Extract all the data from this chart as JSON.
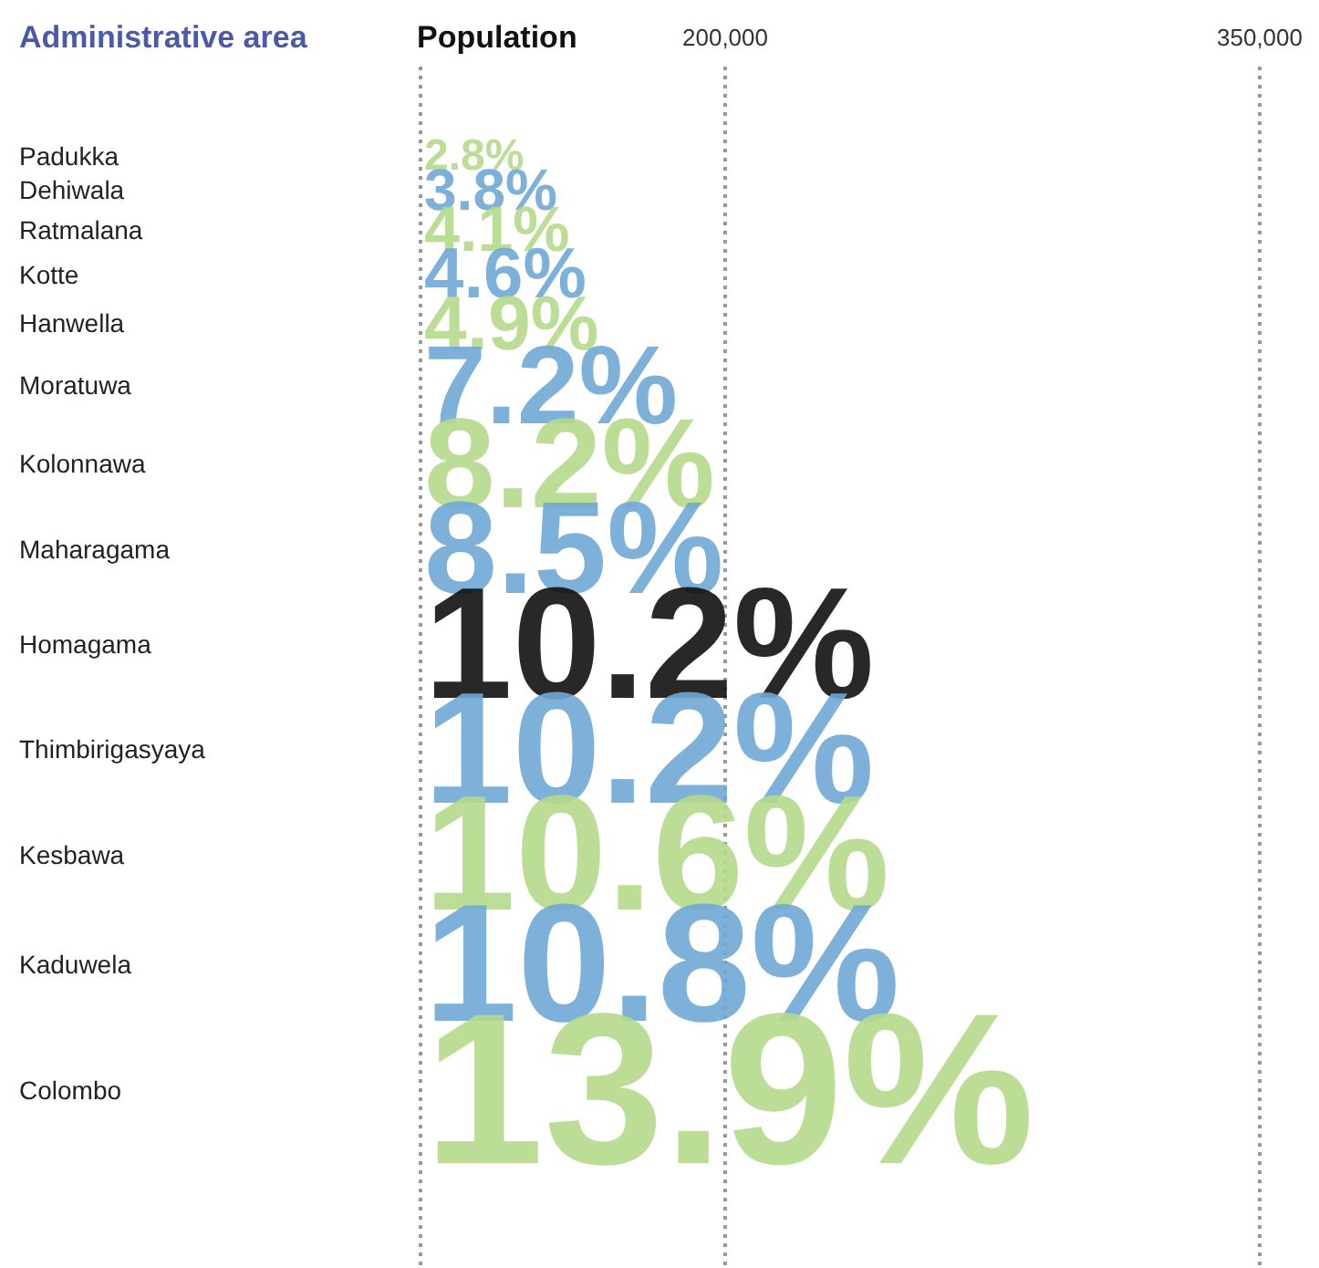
{
  "chart_data": {
    "type": "other",
    "ylabel": "Administrative area",
    "xlabel": "Population",
    "categories": [
      "Padukka",
      "Dehiwala",
      "Ratmalana",
      "Kotte",
      "Hanwella",
      "Moratuwa",
      "Kolonnawa",
      "Maharagama",
      "Homagama",
      "Thimbirigasyaya",
      "Kesbawa",
      "Kaduwela",
      "Colombo"
    ],
    "values": [
      2.8,
      3.8,
      4.1,
      4.6,
      4.9,
      7.2,
      8.2,
      8.5,
      10.2,
      10.2,
      10.6,
      10.8,
      13.9
    ],
    "value_labels": [
      "2.8%",
      "3.8%",
      "4.1%",
      "4.6%",
      "4.9%",
      "7.2%",
      "8.2%",
      "8.5%",
      "10.2%",
      "10.2%",
      "10.6%",
      "10.8%",
      "13.9%"
    ],
    "colors": [
      "#b5d98a",
      "#6fa8d6",
      "#b5d98a",
      "#6fa8d6",
      "#b5d98a",
      "#6fa8d6",
      "#b5d98a",
      "#6fa8d6",
      "#111111",
      "#6fa8d6",
      "#b5d98a",
      "#6fa8d6",
      "#b5d98a"
    ],
    "annotations": [
      "200,000",
      "350,000"
    ]
  }
}
